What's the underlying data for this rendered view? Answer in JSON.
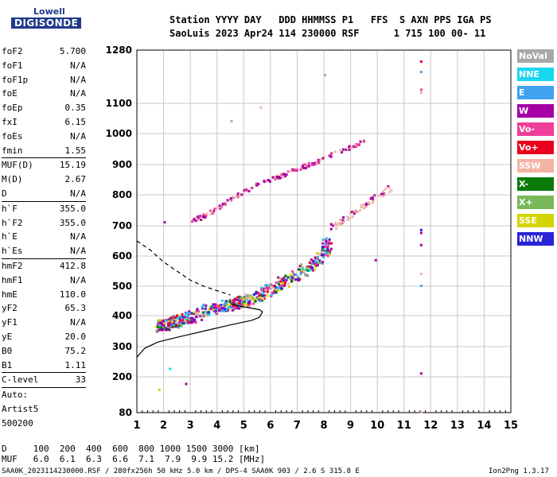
{
  "logo": {
    "top": "Lowell",
    "bottom": "DIGISONDE"
  },
  "header": {
    "line1": "Station YYYY DAY   DDD HHMMSS P1   FFS  S AXN PPS IGA PS",
    "line2": "SaoLuis 2023 Apr24 114 230000 RSF      1 715 100 00- 11"
  },
  "params": {
    "group1": [
      {
        "name": "foF2",
        "value": "5.700"
      },
      {
        "name": "foF1",
        "value": "N/A"
      },
      {
        "name": "foF1p",
        "value": "N/A"
      },
      {
        "name": "foE",
        "value": "N/A"
      },
      {
        "name": "foEp",
        "value": "0.35"
      },
      {
        "name": "fxI",
        "value": "6.15"
      },
      {
        "name": "foEs",
        "value": "N/A"
      },
      {
        "name": "fmin",
        "value": "1.55"
      }
    ],
    "group2": [
      {
        "name": "MUF(D)",
        "value": "15.19"
      },
      {
        "name": "M(D)",
        "value": "2.67"
      },
      {
        "name": "D",
        "value": "N/A"
      }
    ],
    "group3": [
      {
        "name": "h`F",
        "value": "355.0"
      },
      {
        "name": "h`F2",
        "value": "355.0"
      },
      {
        "name": "h`E",
        "value": "N/A"
      },
      {
        "name": "h`Es",
        "value": "N/A"
      }
    ],
    "group4": [
      {
        "name": "hmF2",
        "value": "412.8"
      },
      {
        "name": "hmF1",
        "value": "N/A"
      },
      {
        "name": "hmE",
        "value": "110.0"
      },
      {
        "name": "yF2",
        "value": "65.3"
      },
      {
        "name": "yF1",
        "value": "N/A"
      },
      {
        "name": "yE",
        "value": "20.0"
      },
      {
        "name": "B0",
        "value": "75.2"
      },
      {
        "name": "B1",
        "value": "1.11"
      }
    ],
    "clevel": {
      "name": "C-level",
      "value": "33"
    },
    "auto": [
      "Auto:",
      "Artist5",
      "500200"
    ]
  },
  "legend": [
    {
      "label": "NoVal",
      "color": "#a8a8a8"
    },
    {
      "label": "NNE",
      "color": "#19d6f0"
    },
    {
      "label": "E",
      "color": "#3fa3ef"
    },
    {
      "label": "W",
      "color": "#a500a5"
    },
    {
      "label": "Vo-",
      "color": "#ef3f9a"
    },
    {
      "label": "Vo+",
      "color": "#e8001c"
    },
    {
      "label": "SSW",
      "color": "#f3b3a3"
    },
    {
      "label": "X-",
      "color": "#0a7a0a"
    },
    {
      "label": "X+",
      "color": "#78b85a"
    },
    {
      "label": "SSE",
      "color": "#d4d400"
    },
    {
      "label": "NNW",
      "color": "#2a23d8"
    }
  ],
  "muf_table": {
    "row1": "D     100  200  400  600  800 1000 1500 3000 [km]",
    "row2": "MUF   6.0  6.1  6.3  6.6  7.1  7.9  9.9 15.2 [MHz]"
  },
  "footer": {
    "left": "SAA0K_2023114230000.RSF / 280fx256h 50 kHz 5.0 km / DPS-4 SAA0K 903 / 2.6 S 315.8 E",
    "right": "Ion2Png 1.3.17"
  },
  "chart_data": {
    "type": "scatter",
    "x_ticks": [
      "1",
      "2",
      "3",
      "4",
      "5",
      "6",
      "7",
      "8",
      "9",
      "10",
      "11",
      "12",
      "13",
      "14",
      "15"
    ],
    "y_ticks": [
      "80",
      "200",
      "300",
      "400",
      "500",
      "600",
      "700",
      "800",
      "900",
      "1000",
      "1100",
      "1280"
    ],
    "xlim": [
      1,
      15
    ],
    "x_units": "MHz",
    "y_units": "km",
    "series": [
      {
        "trace": "F2 O-mode",
        "points": [
          [
            1.8,
            370
          ],
          [
            2.0,
            372
          ],
          [
            2.3,
            380
          ],
          [
            2.6,
            390
          ],
          [
            3.0,
            400
          ],
          [
            3.5,
            420
          ],
          [
            4.0,
            432
          ],
          [
            4.5,
            440
          ],
          [
            5.0,
            452
          ],
          [
            5.5,
            470
          ],
          [
            6.0,
            495
          ],
          [
            6.5,
            520
          ],
          [
            7.0,
            545
          ],
          [
            7.5,
            575
          ],
          [
            8.0,
            610
          ],
          [
            8.1,
            650
          ]
        ]
      },
      {
        "trace": "F2 second hop",
        "points": [
          [
            3.0,
            720
          ],
          [
            3.5,
            735
          ],
          [
            4.0,
            760
          ],
          [
            4.5,
            790
          ],
          [
            5.0,
            815
          ],
          [
            5.5,
            840
          ],
          [
            6.0,
            855
          ],
          [
            6.5,
            870
          ],
          [
            7.0,
            890
          ],
          [
            7.5,
            905
          ],
          [
            8.0,
            925
          ],
          [
            9.0,
            960
          ],
          [
            9.5,
            980
          ]
        ]
      },
      {
        "trace": "X-mode",
        "points": [
          [
            8.3,
            700
          ],
          [
            8.6,
            720
          ],
          [
            9.0,
            740
          ],
          [
            9.5,
            770
          ],
          [
            10.0,
            800
          ],
          [
            10.5,
            830
          ]
        ]
      },
      {
        "trace": "profile",
        "points": [
          [
            1.0,
            265
          ],
          [
            1.3,
            295
          ],
          [
            1.8,
            315
          ],
          [
            2.5,
            330
          ],
          [
            3.5,
            350
          ],
          [
            4.5,
            370
          ],
          [
            5.3,
            385
          ],
          [
            5.6,
            395
          ],
          [
            5.7,
            413
          ],
          [
            5.6,
            420
          ],
          [
            5.0,
            430
          ],
          [
            4.5,
            440
          ]
        ]
      },
      {
        "trace": "profile dashed",
        "points": [
          [
            1.0,
            650
          ],
          [
            1.5,
            620
          ],
          [
            2.0,
            580
          ],
          [
            2.5,
            550
          ],
          [
            3.0,
            520
          ],
          [
            3.5,
            500
          ],
          [
            4.0,
            485
          ],
          [
            4.5,
            470
          ]
        ]
      }
    ]
  }
}
